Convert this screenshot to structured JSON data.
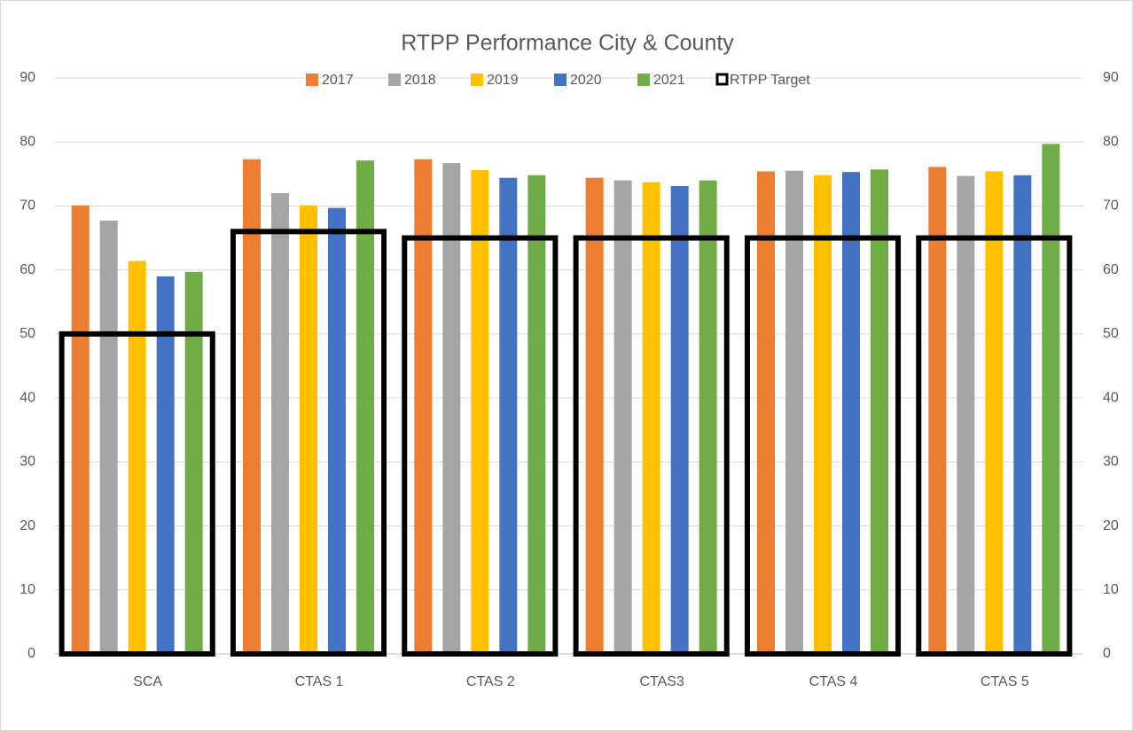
{
  "chart_data": {
    "type": "bar",
    "title": "RTPP Performance City & County",
    "categories": [
      "SCA",
      "CTAS 1",
      "CTAS 2",
      "CTAS3",
      "CTAS 4",
      "CTAS 5"
    ],
    "series": [
      {
        "name": "2017",
        "color": "#ed7d31",
        "values": [
          70.1,
          77.3,
          77.3,
          74.4,
          75.4,
          76.1
        ]
      },
      {
        "name": "2018",
        "color": "#a5a5a5",
        "values": [
          67.7,
          72.0,
          76.7,
          74.0,
          75.5,
          74.7
        ]
      },
      {
        "name": "2019",
        "color": "#ffc000",
        "values": [
          61.4,
          70.1,
          75.6,
          73.7,
          74.8,
          75.4
        ]
      },
      {
        "name": "2020",
        "color": "#4472c4",
        "values": [
          59.0,
          69.7,
          74.4,
          73.1,
          75.3,
          74.8
        ]
      },
      {
        "name": "2021",
        "color": "#70ad47",
        "values": [
          59.7,
          77.1,
          74.8,
          74.0,
          75.7,
          79.7
        ]
      },
      {
        "name": "RTPP Target",
        "color": "#000000",
        "style": "outline",
        "values": [
          50,
          66,
          65,
          65,
          65,
          65
        ]
      }
    ],
    "ylim": [
      0,
      90
    ],
    "yticks": [
      0,
      10,
      20,
      30,
      40,
      50,
      60,
      70,
      80,
      90
    ],
    "y2lim": [
      0,
      90
    ],
    "y2ticks": [
      0,
      10,
      20,
      30,
      40,
      50,
      60,
      70,
      80,
      90
    ],
    "grid": true,
    "legend": "top"
  }
}
